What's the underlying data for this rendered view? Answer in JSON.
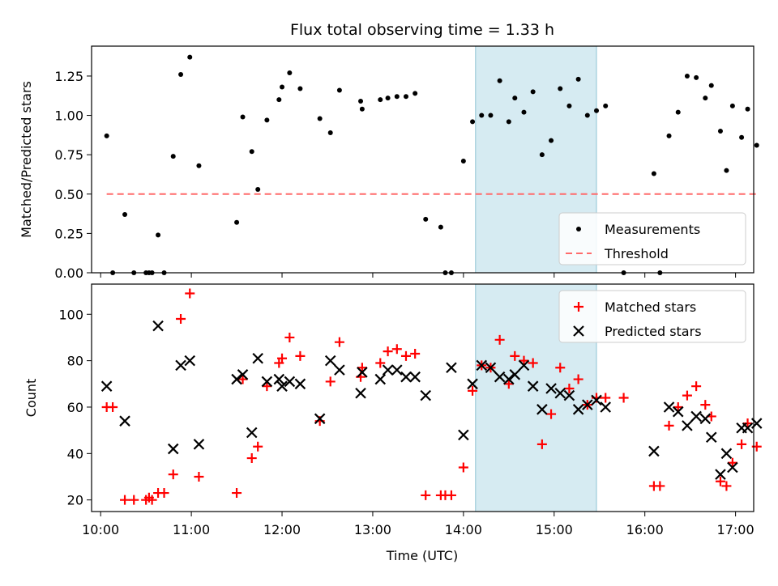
{
  "chart_data": {
    "title": "Flux total observing time = 1.33 h",
    "xlabel": "Time (UTC)",
    "x_ticks": [
      "10:00",
      "11:00",
      "12:00",
      "13:00",
      "14:00",
      "15:00",
      "16:00",
      "17:00"
    ],
    "xlim": [
      "09:54",
      "17:12"
    ],
    "highlight_span": {
      "start": "14:08",
      "end": "15:28",
      "color": "#add8e6"
    },
    "grid": false,
    "panels": [
      {
        "type": "scatter",
        "ylabel": "Matched/Predicted stars",
        "ylim": [
          0,
          1.44
        ],
        "y_ticks": [
          "0.00",
          "0.25",
          "0.50",
          "0.75",
          "1.00",
          "1.25"
        ],
        "legend_position": "lower-right",
        "legend": [
          "Measurements",
          "Threshold"
        ],
        "series": [
          {
            "name": "Measurements",
            "marker": "dot",
            "color": "#000000",
            "points": [
              [
                "10:04",
                0.87
              ],
              [
                "10:08",
                0.0
              ],
              [
                "10:16",
                0.37
              ],
              [
                "10:22",
                0.0
              ],
              [
                "10:30",
                0.0
              ],
              [
                "10:32",
                0.0
              ],
              [
                "10:34",
                0.0
              ],
              [
                "10:38",
                0.24
              ],
              [
                "10:42",
                0.0
              ],
              [
                "10:48",
                0.74
              ],
              [
                "10:53",
                1.26
              ],
              [
                "10:59",
                1.37
              ],
              [
                "11:05",
                0.68
              ],
              [
                "11:30",
                0.32
              ],
              [
                "11:34",
                0.99
              ],
              [
                "11:40",
                0.77
              ],
              [
                "11:44",
                0.53
              ],
              [
                "11:50",
                0.97
              ],
              [
                "11:58",
                1.1
              ],
              [
                "12:00",
                1.18
              ],
              [
                "12:05",
                1.27
              ],
              [
                "12:12",
                1.17
              ],
              [
                "12:25",
                0.98
              ],
              [
                "12:32",
                0.89
              ],
              [
                "12:38",
                1.16
              ],
              [
                "12:52",
                1.09
              ],
              [
                "12:53",
                1.04
              ],
              [
                "13:05",
                1.1
              ],
              [
                "13:10",
                1.11
              ],
              [
                "13:16",
                1.12
              ],
              [
                "13:22",
                1.12
              ],
              [
                "13:28",
                1.14
              ],
              [
                "13:35",
                0.34
              ],
              [
                "13:45",
                0.29
              ],
              [
                "13:48",
                0.0
              ],
              [
                "13:52",
                0.0
              ],
              [
                "14:00",
                0.71
              ],
              [
                "14:06",
                0.96
              ],
              [
                "14:12",
                1.0
              ],
              [
                "14:18",
                1.0
              ],
              [
                "14:24",
                1.22
              ],
              [
                "14:30",
                0.96
              ],
              [
                "14:34",
                1.11
              ],
              [
                "14:40",
                1.02
              ],
              [
                "14:46",
                1.15
              ],
              [
                "14:52",
                0.75
              ],
              [
                "14:58",
                0.84
              ],
              [
                "15:04",
                1.17
              ],
              [
                "15:10",
                1.06
              ],
              [
                "15:16",
                1.23
              ],
              [
                "15:22",
                1.0
              ],
              [
                "15:28",
                1.03
              ],
              [
                "15:34",
                1.06
              ],
              [
                "15:46",
                0.0
              ],
              [
                "16:06",
                0.63
              ],
              [
                "16:10",
                0.0
              ],
              [
                "16:16",
                0.87
              ],
              [
                "16:22",
                1.02
              ],
              [
                "16:28",
                1.25
              ],
              [
                "16:34",
                1.24
              ],
              [
                "16:40",
                1.11
              ],
              [
                "16:44",
                1.19
              ],
              [
                "16:50",
                0.9
              ],
              [
                "16:54",
                0.65
              ],
              [
                "16:58",
                1.06
              ],
              [
                "17:04",
                0.86
              ],
              [
                "17:08",
                1.04
              ],
              [
                "17:14",
                0.81
              ]
            ]
          },
          {
            "name": "Threshold",
            "type": "line",
            "style": "dashed",
            "color": "#ff6b6b",
            "points": [
              [
                "10:04",
                0.5
              ],
              [
                "17:14",
                0.5
              ]
            ]
          }
        ]
      },
      {
        "type": "scatter",
        "ylabel": "Count",
        "ylim": [
          15,
          113
        ],
        "y_ticks": [
          "20",
          "40",
          "60",
          "80",
          "100"
        ],
        "legend_position": "top-right",
        "legend": [
          "Matched stars",
          "Predicted stars"
        ],
        "series": [
          {
            "name": "Matched stars",
            "marker": "plus",
            "color": "#ff0000",
            "points": [
              [
                "10:04",
                60
              ],
              [
                "10:08",
                60
              ],
              [
                "10:16",
                20
              ],
              [
                "10:22",
                20
              ],
              [
                "10:30",
                20
              ],
              [
                "10:32",
                21
              ],
              [
                "10:34",
                20
              ],
              [
                "10:38",
                23
              ],
              [
                "10:42",
                23
              ],
              [
                "10:48",
                31
              ],
              [
                "10:53",
                98
              ],
              [
                "10:59",
                109
              ],
              [
                "11:05",
                30
              ],
              [
                "11:30",
                23
              ],
              [
                "11:34",
                72
              ],
              [
                "11:40",
                38
              ],
              [
                "11:44",
                43
              ],
              [
                "11:50",
                69
              ],
              [
                "11:58",
                79
              ],
              [
                "12:00",
                81
              ],
              [
                "12:05",
                90
              ],
              [
                "12:12",
                82
              ],
              [
                "12:25",
                54
              ],
              [
                "12:32",
                71
              ],
              [
                "12:38",
                88
              ],
              [
                "12:52",
                73
              ],
              [
                "12:53",
                77
              ],
              [
                "13:05",
                79
              ],
              [
                "13:10",
                84
              ],
              [
                "13:16",
                85
              ],
              [
                "13:22",
                82
              ],
              [
                "13:28",
                83
              ],
              [
                "13:35",
                22
              ],
              [
                "13:45",
                22
              ],
              [
                "13:48",
                22
              ],
              [
                "13:52",
                22
              ],
              [
                "14:00",
                34
              ],
              [
                "14:06",
                67
              ],
              [
                "14:12",
                78
              ],
              [
                "14:18",
                77
              ],
              [
                "14:24",
                89
              ],
              [
                "14:30",
                70
              ],
              [
                "14:34",
                82
              ],
              [
                "14:40",
                80
              ],
              [
                "14:46",
                79
              ],
              [
                "14:52",
                44
              ],
              [
                "14:58",
                57
              ],
              [
                "15:04",
                77
              ],
              [
                "15:10",
                68
              ],
              [
                "15:16",
                72
              ],
              [
                "15:22",
                61
              ],
              [
                "15:28",
                64
              ],
              [
                "15:34",
                64
              ],
              [
                "15:46",
                64
              ],
              [
                "16:06",
                26
              ],
              [
                "16:10",
                26
              ],
              [
                "16:16",
                52
              ],
              [
                "16:22",
                60
              ],
              [
                "16:28",
                65
              ],
              [
                "16:34",
                69
              ],
              [
                "16:40",
                61
              ],
              [
                "16:44",
                56
              ],
              [
                "16:50",
                28
              ],
              [
                "16:54",
                26
              ],
              [
                "16:58",
                36
              ],
              [
                "17:04",
                44
              ],
              [
                "17:08",
                53
              ],
              [
                "17:14",
                43
              ]
            ]
          },
          {
            "name": "Predicted stars",
            "marker": "x",
            "color": "#000000",
            "points": [
              [
                "10:04",
                69
              ],
              [
                "10:16",
                54
              ],
              [
                "10:38",
                95
              ],
              [
                "10:48",
                42
              ],
              [
                "10:53",
                78
              ],
              [
                "10:59",
                80
              ],
              [
                "11:05",
                44
              ],
              [
                "11:30",
                72
              ],
              [
                "11:34",
                74
              ],
              [
                "11:40",
                49
              ],
              [
                "11:44",
                81
              ],
              [
                "11:50",
                71
              ],
              [
                "11:58",
                72
              ],
              [
                "12:00",
                69
              ],
              [
                "12:05",
                71
              ],
              [
                "12:12",
                70
              ],
              [
                "12:25",
                55
              ],
              [
                "12:32",
                80
              ],
              [
                "12:38",
                76
              ],
              [
                "12:52",
                66
              ],
              [
                "12:53",
                75
              ],
              [
                "13:05",
                72
              ],
              [
                "13:10",
                76
              ],
              [
                "13:16",
                76
              ],
              [
                "13:22",
                73
              ],
              [
                "13:28",
                73
              ],
              [
                "13:35",
                65
              ],
              [
                "13:52",
                77
              ],
              [
                "14:00",
                48
              ],
              [
                "14:06",
                70
              ],
              [
                "14:12",
                78
              ],
              [
                "14:18",
                77
              ],
              [
                "14:24",
                73
              ],
              [
                "14:30",
                72
              ],
              [
                "14:34",
                74
              ],
              [
                "14:40",
                78
              ],
              [
                "14:46",
                69
              ],
              [
                "14:52",
                59
              ],
              [
                "14:58",
                68
              ],
              [
                "15:04",
                66
              ],
              [
                "15:10",
                65
              ],
              [
                "15:16",
                59
              ],
              [
                "15:22",
                61
              ],
              [
                "15:28",
                63
              ],
              [
                "15:34",
                60
              ],
              [
                "16:06",
                41
              ],
              [
                "16:16",
                60
              ],
              [
                "16:22",
                58
              ],
              [
                "16:28",
                52
              ],
              [
                "16:34",
                56
              ],
              [
                "16:40",
                55
              ],
              [
                "16:44",
                47
              ],
              [
                "16:50",
                31
              ],
              [
                "16:54",
                40
              ],
              [
                "16:58",
                34
              ],
              [
                "17:04",
                51
              ],
              [
                "17:08",
                51
              ],
              [
                "17:14",
                53
              ]
            ]
          }
        ]
      }
    ]
  }
}
